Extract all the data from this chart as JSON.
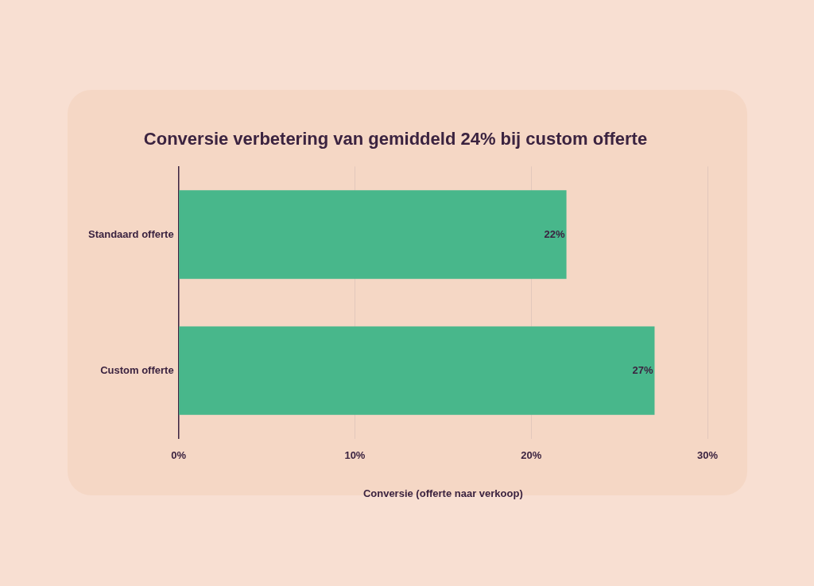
{
  "chart_data": {
    "type": "bar",
    "orientation": "horizontal",
    "title": "Conversie verbetering van gemiddeld 24% bij custom offerte",
    "xlabel": "Conversie (offerte naar verkoop)",
    "categories": [
      "Standaard offerte",
      "Custom offerte"
    ],
    "values": [
      22,
      27
    ],
    "color": "#48b78b",
    "value_labels": [
      "22%",
      "27%"
    ],
    "xlim": [
      0,
      30
    ],
    "xticks": [
      {
        "value": 0,
        "label": "0%"
      },
      {
        "value": 10,
        "label": "10%"
      },
      {
        "value": 20,
        "label": "20%"
      },
      {
        "value": 30,
        "label": "30%"
      }
    ],
    "grid": "x",
    "legend": false
  }
}
